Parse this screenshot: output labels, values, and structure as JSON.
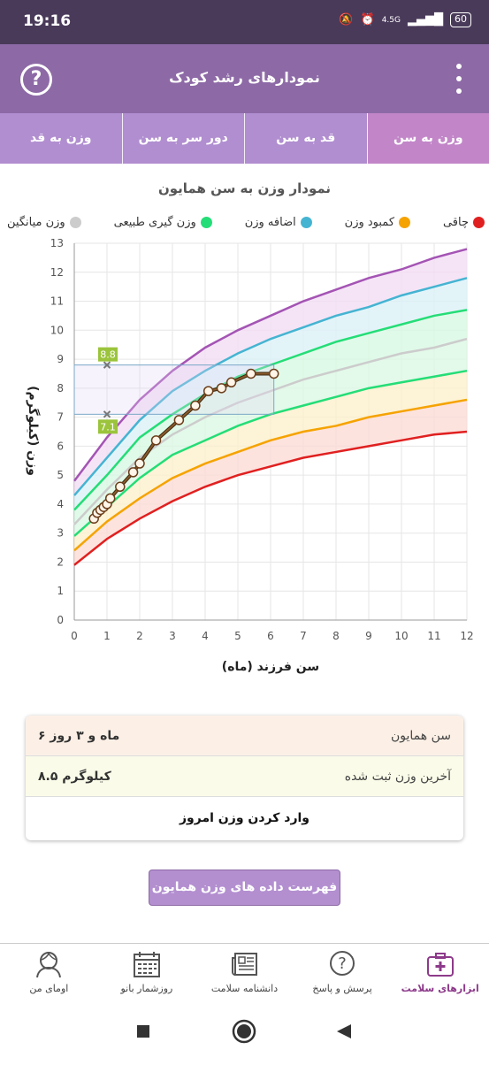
{
  "status_bar": {
    "time": "19:16",
    "network": "4.5G",
    "battery": "60"
  },
  "app_bar": {
    "title": "نمودارهای رشد کودک",
    "help_icon": "help-icon",
    "menu_icon": "more-vert-icon"
  },
  "tabs": [
    {
      "label": "وزن به سن",
      "active": true
    },
    {
      "label": "قد به سن",
      "active": false
    },
    {
      "label": "دور سر به سن",
      "active": false
    },
    {
      "label": "وزن به قد",
      "active": false
    }
  ],
  "chart_data": {
    "type": "line",
    "title": "نمودار وزن به سن همایون",
    "xlabel": "سن فرزند (ماه)",
    "ylabel": "وزن (کیلوگرم)",
    "xlim": [
      0,
      12
    ],
    "ylim": [
      0,
      13
    ],
    "x_ticks": [
      0,
      1,
      2,
      3,
      4,
      5,
      6,
      7,
      8,
      9,
      10,
      11,
      12
    ],
    "y_ticks": [
      0,
      1,
      2,
      3,
      4,
      5,
      6,
      7,
      8,
      9,
      10,
      11,
      12,
      13
    ],
    "grid": true,
    "legend_position": "top",
    "x": [
      0,
      1,
      2,
      3,
      4,
      5,
      6,
      7,
      8,
      9,
      10,
      11,
      12
    ],
    "series": [
      {
        "name": "چاقی",
        "color": "#e02020",
        "values": [
          4.8,
          6.3,
          7.6,
          8.6,
          9.4,
          10.0,
          10.5,
          11.0,
          11.4,
          11.8,
          12.1,
          12.5,
          12.8
        ]
      },
      {
        "name": "اضافه وزن",
        "color": "#45b4d2",
        "values": [
          4.3,
          5.6,
          6.9,
          7.9,
          8.6,
          9.2,
          9.7,
          10.1,
          10.5,
          10.8,
          11.2,
          11.5,
          11.8
        ]
      },
      {
        "name": "وزن گیری طبیعی",
        "color": "#25dd77",
        "values": [
          3.8,
          5.0,
          6.3,
          7.1,
          7.8,
          8.4,
          8.8,
          9.2,
          9.6,
          9.9,
          10.2,
          10.5,
          10.7
        ]
      },
      {
        "name": "وزن میانگین",
        "color": "#cccccc",
        "values": [
          3.3,
          4.5,
          5.6,
          6.4,
          7.0,
          7.5,
          7.9,
          8.3,
          8.6,
          8.9,
          9.2,
          9.4,
          9.7
        ]
      },
      {
        "name": "وزن گیری طبیعی",
        "color": "#25dd77",
        "values": [
          2.9,
          3.9,
          4.9,
          5.7,
          6.2,
          6.7,
          7.1,
          7.4,
          7.7,
          8.0,
          8.2,
          8.4,
          8.6
        ]
      },
      {
        "name": "کمبود وزن",
        "color": "#f5a300",
        "values": [
          2.4,
          3.4,
          4.2,
          4.9,
          5.4,
          5.8,
          6.2,
          6.5,
          6.7,
          7.0,
          7.2,
          7.4,
          7.6
        ]
      },
      {
        "name": "چاقی",
        "color": "#e02020",
        "values": [
          1.9,
          2.8,
          3.5,
          4.1,
          4.6,
          5.0,
          5.3,
          5.6,
          5.8,
          6.0,
          6.2,
          6.4,
          6.5
        ]
      }
    ],
    "child": {
      "color": "#8b5a2b",
      "points": [
        [
          0.6,
          3.5
        ],
        [
          0.7,
          3.7
        ],
        [
          0.8,
          3.8
        ],
        [
          0.9,
          3.9
        ],
        [
          1.0,
          4.0
        ],
        [
          1.1,
          4.2
        ],
        [
          1.4,
          4.6
        ],
        [
          1.8,
          5.1
        ],
        [
          2.0,
          5.4
        ],
        [
          2.5,
          6.2
        ],
        [
          3.2,
          6.9
        ],
        [
          3.7,
          7.4
        ],
        [
          4.1,
          7.9
        ],
        [
          4.5,
          8.0
        ],
        [
          4.8,
          8.2
        ],
        [
          5.4,
          8.5
        ],
        [
          6.1,
          8.5
        ]
      ]
    },
    "range_markers": {
      "age": 1,
      "upper": 8.8,
      "lower": 7.1,
      "upper_label": "8.8",
      "lower_label": "7.1",
      "box_x": [
        0,
        6.1
      ]
    }
  },
  "legend": [
    {
      "label": "چاقی",
      "color": "#e02020"
    },
    {
      "label": "کمبود وزن",
      "color": "#f5a300"
    },
    {
      "label": "اضافه وزن",
      "color": "#45b4d2"
    },
    {
      "label": "وزن گیری طبیعی",
      "color": "#25dd77"
    },
    {
      "label": "وزن میانگین",
      "color": "#cccccc"
    },
    {
      "label": "چاقی",
      "color": "#a454b4"
    }
  ],
  "info": {
    "age_label": "سن همایون",
    "age_value": "۶ ماه و ۳ روز",
    "weight_label": "آخرین وزن ثبت شده",
    "weight_value": "۸.۵ کیلوگرم",
    "action": "وارد کردن وزن امروز"
  },
  "list_button": "فهرست داده های وزن همایون",
  "bottom_nav": [
    {
      "label": "ابزارهای سلامت",
      "icon": "health-kit-icon",
      "active": true
    },
    {
      "label": "پرسش و پاسخ",
      "icon": "question-bubble-icon",
      "active": false
    },
    {
      "label": "دانشنامه سلامت",
      "icon": "newspaper-icon",
      "active": false
    },
    {
      "label": "روزشمار بانو",
      "icon": "calendar-icon",
      "active": false
    },
    {
      "label": "اومای من",
      "icon": "user-avatar-icon",
      "active": false
    }
  ]
}
